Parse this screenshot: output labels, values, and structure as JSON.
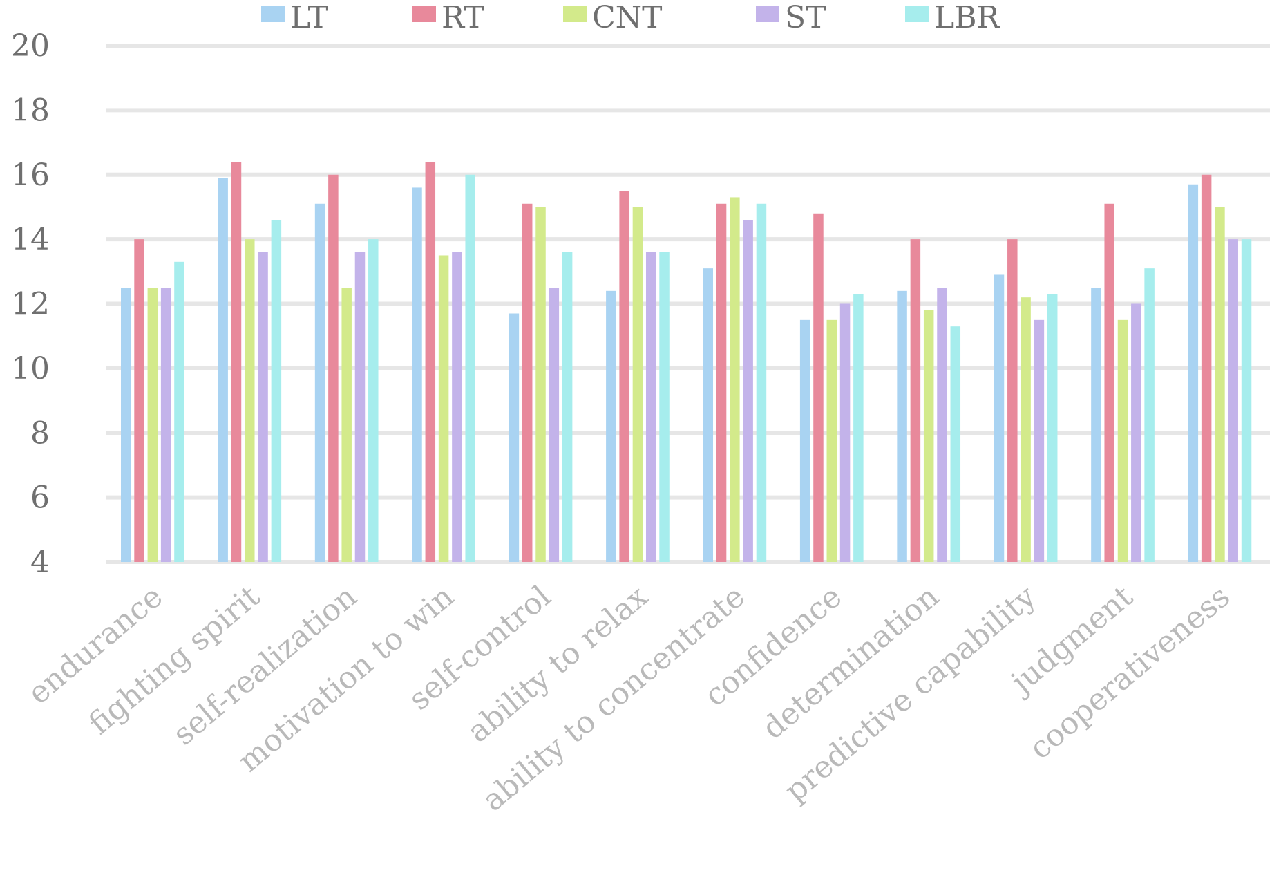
{
  "chart_data": {
    "type": "bar",
    "title": "",
    "xlabel": "",
    "ylabel": "",
    "ylim": [
      4,
      20
    ],
    "yticks": [
      4,
      6,
      8,
      10,
      12,
      14,
      16,
      18,
      20
    ],
    "grid": true,
    "legend_position": "top",
    "categories": [
      "endurance",
      "fighting spirit",
      "self-realization",
      "motivation to win",
      "self-control",
      "ability to relax",
      "ability to concentrate",
      "confidence",
      "determination",
      "predictive capability",
      "judgment",
      "cooperativeness"
    ],
    "series": [
      {
        "name": "LT",
        "color": "#a9d3f2",
        "values": [
          12.5,
          15.9,
          15.1,
          15.6,
          11.7,
          12.4,
          13.1,
          11.5,
          12.4,
          12.9,
          12.5,
          15.7
        ]
      },
      {
        "name": "RT",
        "color": "#e8899b",
        "values": [
          14.0,
          16.4,
          16.0,
          16.4,
          15.1,
          15.5,
          15.1,
          14.8,
          14.0,
          14.0,
          15.1,
          16.0
        ]
      },
      {
        "name": "CNT",
        "color": "#d3ea8b",
        "values": [
          12.5,
          14.0,
          12.5,
          13.5,
          15.0,
          15.0,
          15.3,
          11.5,
          11.8,
          12.2,
          11.5,
          15.0
        ]
      },
      {
        "name": "ST",
        "color": "#c3b3ea",
        "values": [
          12.5,
          13.6,
          13.6,
          13.6,
          12.5,
          13.6,
          14.6,
          12.0,
          12.5,
          11.5,
          12.0,
          14.0
        ]
      },
      {
        "name": "LBR",
        "color": "#a6eded",
        "values": [
          13.3,
          14.6,
          14.0,
          16.0,
          13.6,
          13.6,
          15.1,
          12.3,
          11.3,
          12.3,
          13.1,
          14.0
        ]
      }
    ]
  }
}
